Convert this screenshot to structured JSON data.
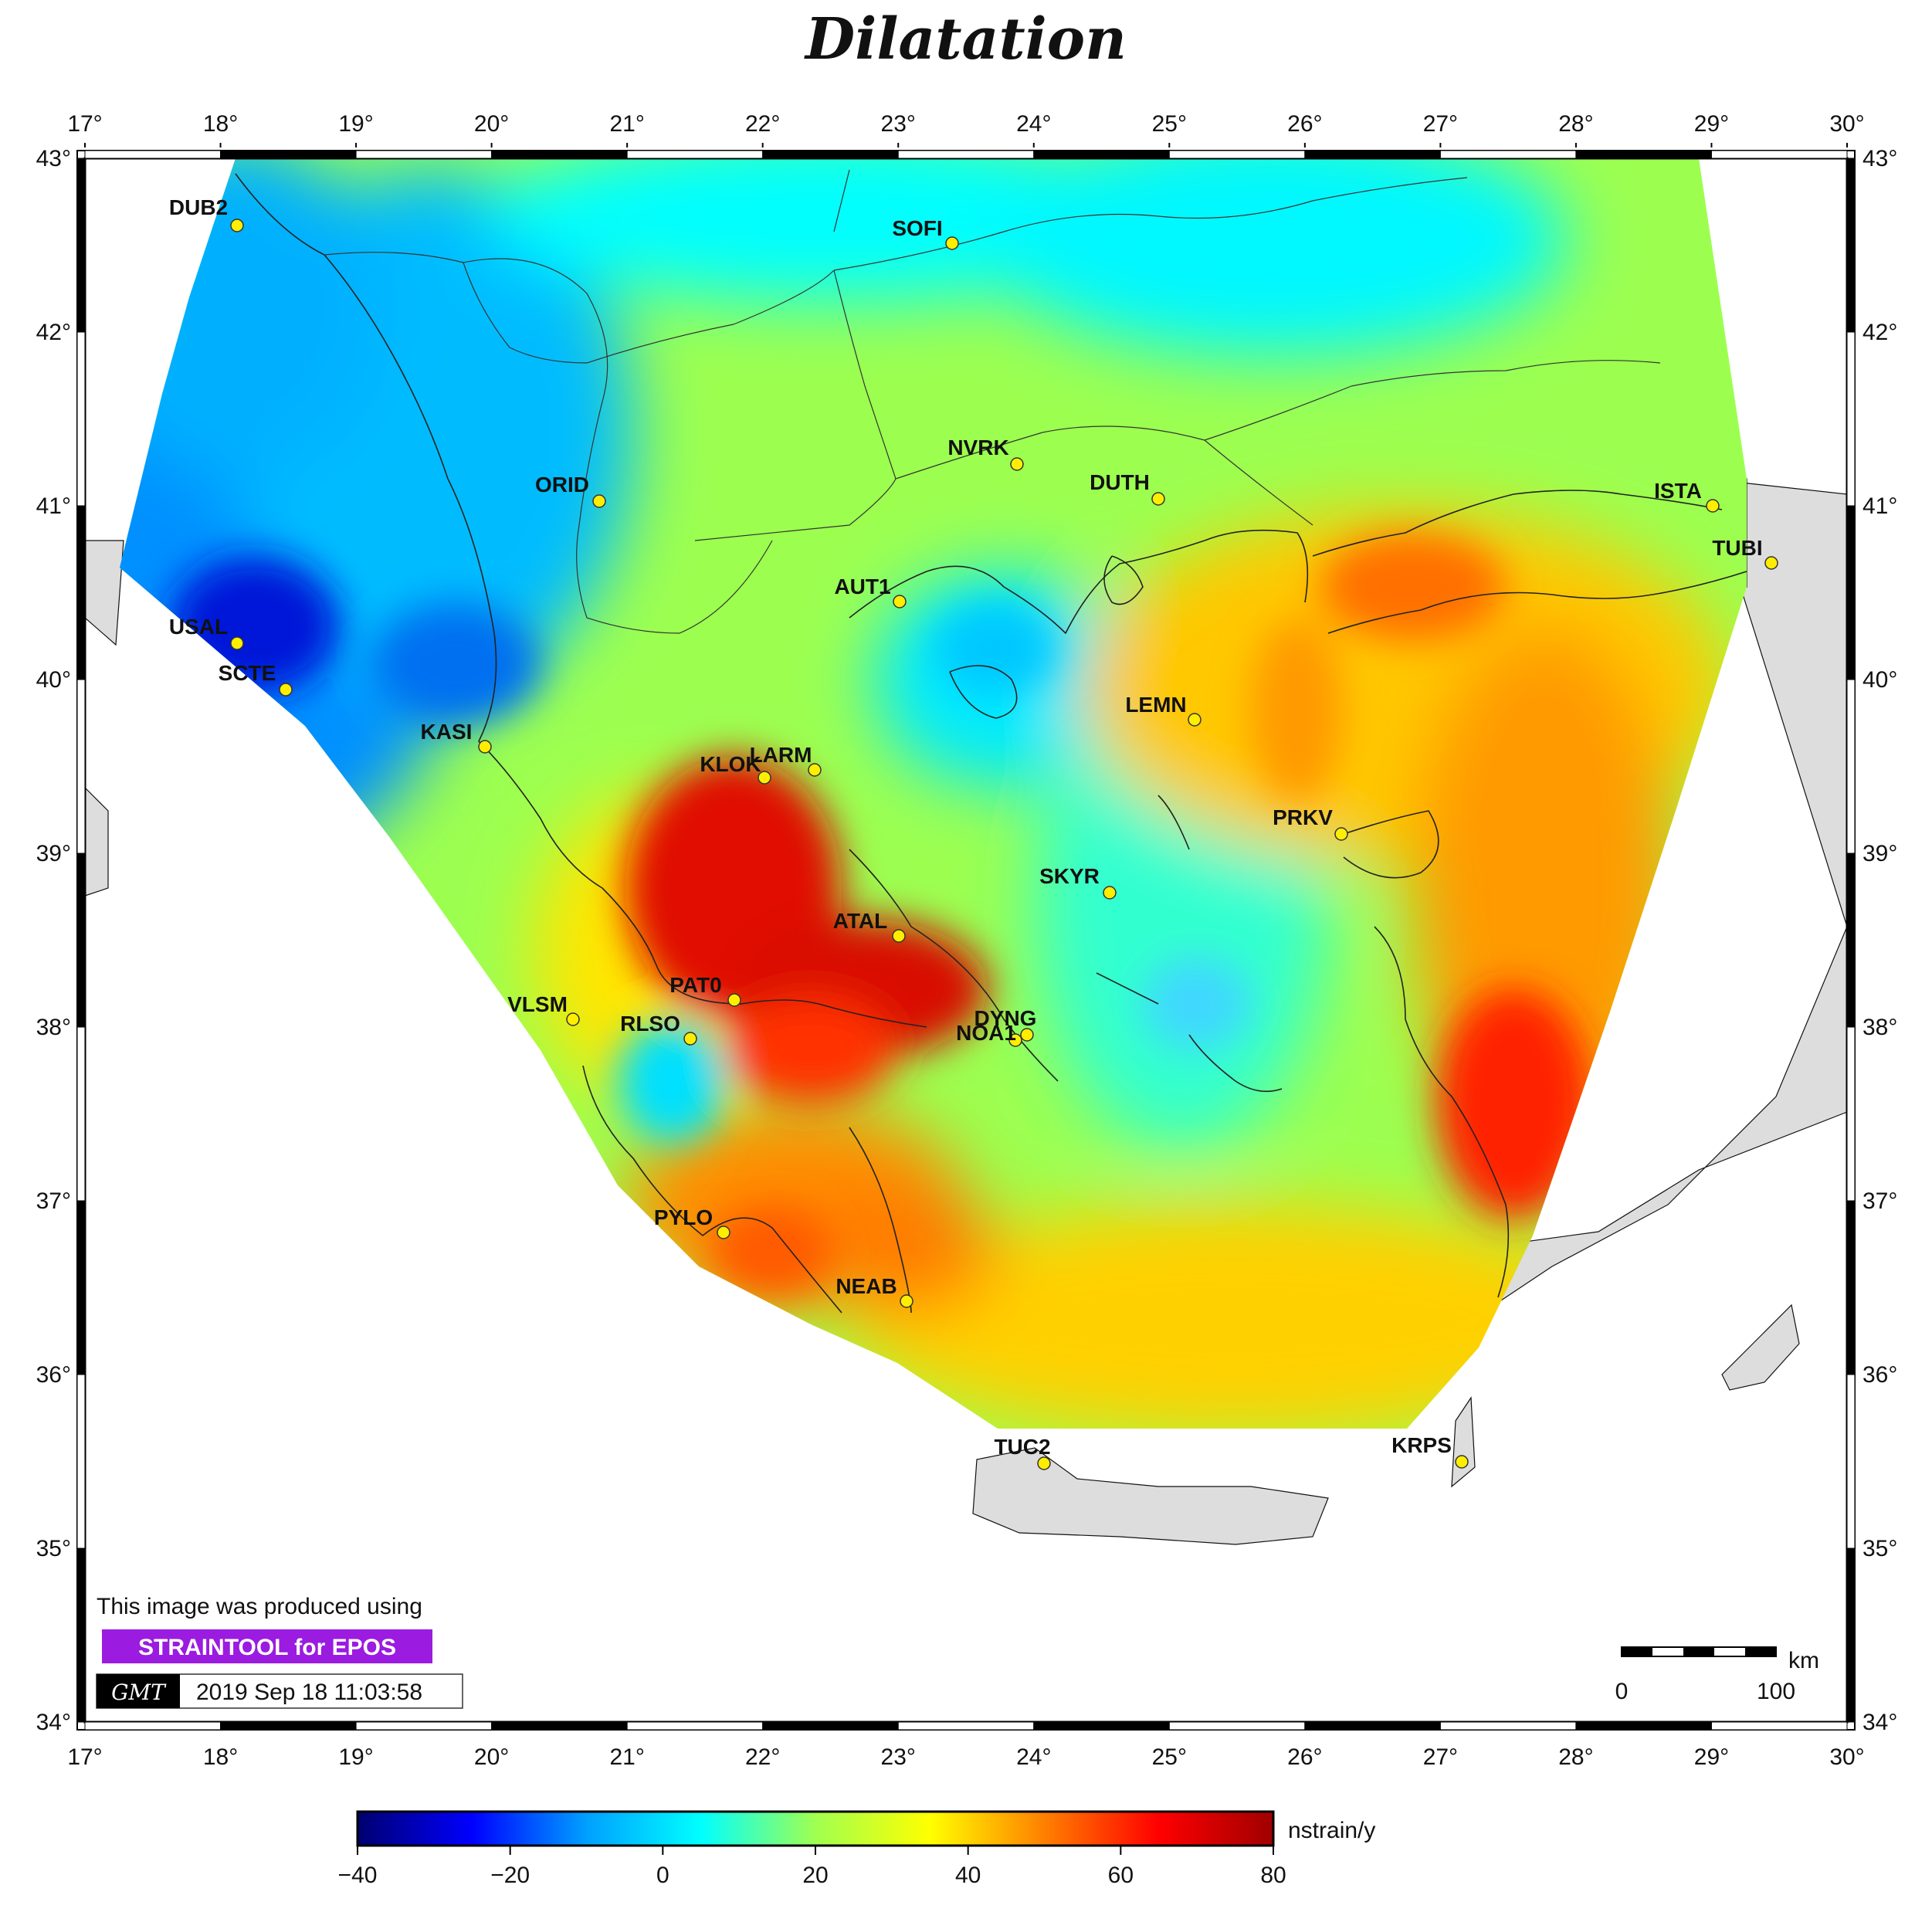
{
  "title": "Dilatation",
  "lon_ticks": [
    "17°",
    "18°",
    "19°",
    "20°",
    "21°",
    "22°",
    "23°",
    "24°",
    "25°",
    "26°",
    "27°",
    "28°",
    "29°",
    "30°"
  ],
  "lat_ticks": [
    "43°",
    "42°",
    "41°",
    "40°",
    "39°",
    "38°",
    "37°",
    "36°",
    "35°",
    "34°"
  ],
  "stations": [
    {
      "name": "DUB2"
    },
    {
      "name": "SOFI"
    },
    {
      "name": "NVRK"
    },
    {
      "name": "ORID"
    },
    {
      "name": "DUTH"
    },
    {
      "name": "ISTA"
    },
    {
      "name": "TUBI"
    },
    {
      "name": "AUT1"
    },
    {
      "name": "USAL"
    },
    {
      "name": "SCTE"
    },
    {
      "name": "LEMN"
    },
    {
      "name": "KASI"
    },
    {
      "name": "KLOK"
    },
    {
      "name": "LARM"
    },
    {
      "name": "PRKV"
    },
    {
      "name": "SKYR"
    },
    {
      "name": "ATAL"
    },
    {
      "name": "PAT0"
    },
    {
      "name": "VLSM"
    },
    {
      "name": "RLSO"
    },
    {
      "name": "DYNG"
    },
    {
      "name": "NOA1"
    },
    {
      "name": "PYLO"
    },
    {
      "name": "NEAB"
    },
    {
      "name": "TUC2"
    },
    {
      "name": "KRPS"
    }
  ],
  "credit": {
    "line1": "This image was produced using",
    "tool": "STRAINTOOL for EPOS",
    "logo": "GMT",
    "timestamp": "2019 Sep 18 11:03:58"
  },
  "scalebar": {
    "unit": "km",
    "start": "0",
    "end": "100"
  },
  "colorbar": {
    "unit": "nstrain/y",
    "ticks": [
      "−40",
      "−20",
      "0",
      "20",
      "40",
      "60",
      "80"
    ],
    "range": [
      -40,
      80
    ],
    "colors": [
      "#000070",
      "#0000ff",
      "#00a0ff",
      "#00ffff",
      "#a0ff50",
      "#ffff00",
      "#ff8000",
      "#ff0000",
      "#a00000"
    ]
  }
}
